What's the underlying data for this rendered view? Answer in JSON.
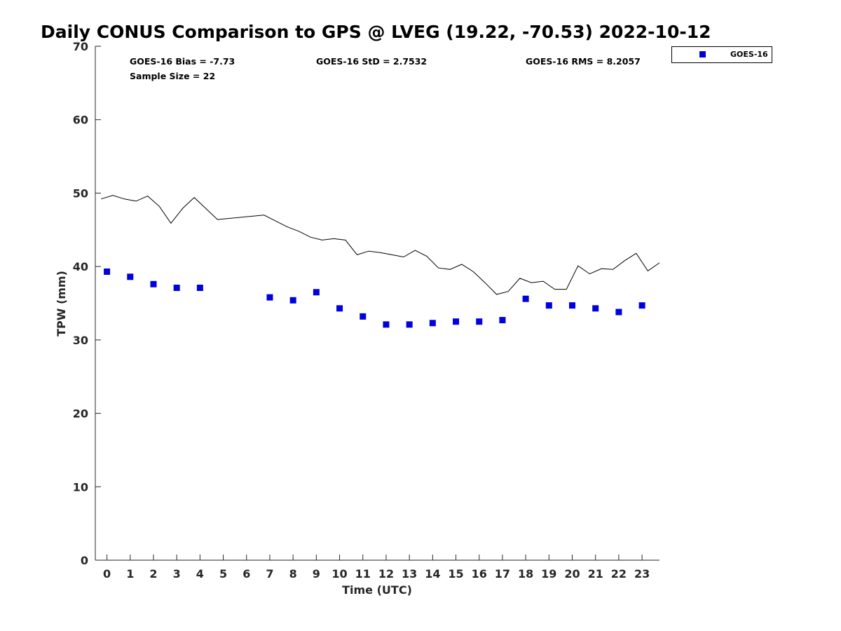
{
  "chart_data": {
    "type": "scatter",
    "title": "Daily CONUS Comparison to GPS @ LVEG (19.22, -70.53) 2022-10-12",
    "xlabel": "Time (UTC)",
    "ylabel": "TPW (mm)",
    "xlim": [
      -0.5,
      23.75
    ],
    "ylim": [
      0,
      70
    ],
    "xticks": [
      0,
      1,
      2,
      3,
      4,
      5,
      6,
      7,
      8,
      9,
      10,
      11,
      12,
      13,
      14,
      15,
      16,
      17,
      18,
      19,
      20,
      21,
      22,
      23
    ],
    "yticks": [
      0,
      10,
      20,
      30,
      40,
      50,
      60,
      70
    ],
    "grid": false,
    "legend_position": "top-right (outside)",
    "stats": {
      "bias": "GOES-16 Bias = -7.73",
      "std": "GOES-16 StD = 2.7532",
      "rms": "GOES-16 RMS = 8.2057",
      "sample_size": "Sample Size = 22"
    },
    "series": [
      {
        "name": "GOES-16",
        "kind": "markers",
        "marker": "square",
        "color": "#0000dd",
        "x": [
          0,
          1,
          2,
          3,
          4,
          7,
          8,
          9,
          10,
          11,
          12,
          13,
          14,
          15,
          16,
          17,
          18,
          19,
          20,
          21,
          22,
          23
        ],
        "y": [
          39.3,
          38.6,
          37.6,
          37.1,
          37.1,
          35.8,
          35.4,
          36.5,
          34.3,
          33.2,
          32.1,
          32.1,
          32.3,
          32.5,
          32.5,
          32.7,
          35.6,
          34.7,
          34.7,
          34.3,
          33.8,
          34.7
        ]
      },
      {
        "kind": "line",
        "color": "#000000",
        "x": [
          -0.25,
          0.25,
          0.75,
          1.25,
          1.75,
          2.25,
          2.75,
          3.25,
          3.75,
          4.25,
          4.75,
          6.75,
          7.25,
          7.75,
          8.25,
          8.75,
          9.25,
          9.75,
          10.25,
          10.75,
          11.25,
          11.75,
          12.25,
          12.75,
          13.25,
          13.75,
          14.25,
          14.75,
          15.25,
          15.75,
          16.25,
          16.75,
          17.25,
          17.75,
          18.25,
          18.75,
          19.25,
          19.75,
          20.25,
          20.75,
          21.25,
          21.75,
          22.25,
          22.75,
          23.25,
          23.75
        ],
        "y": [
          49.2,
          49.7,
          49.2,
          48.9,
          49.6,
          48.2,
          45.9,
          47.9,
          49.4,
          47.9,
          46.4,
          47.0,
          46.2,
          45.4,
          44.8,
          44.0,
          43.6,
          43.8,
          43.6,
          41.6,
          42.1,
          41.9,
          41.6,
          41.3,
          42.2,
          41.4,
          39.8,
          39.6,
          40.3,
          39.3,
          37.8,
          36.2,
          36.6,
          38.4,
          37.8,
          38.0,
          36.9,
          36.9,
          40.1,
          39.0,
          39.7,
          39.6,
          40.8,
          41.8,
          39.4,
          40.5
        ]
      }
    ]
  }
}
